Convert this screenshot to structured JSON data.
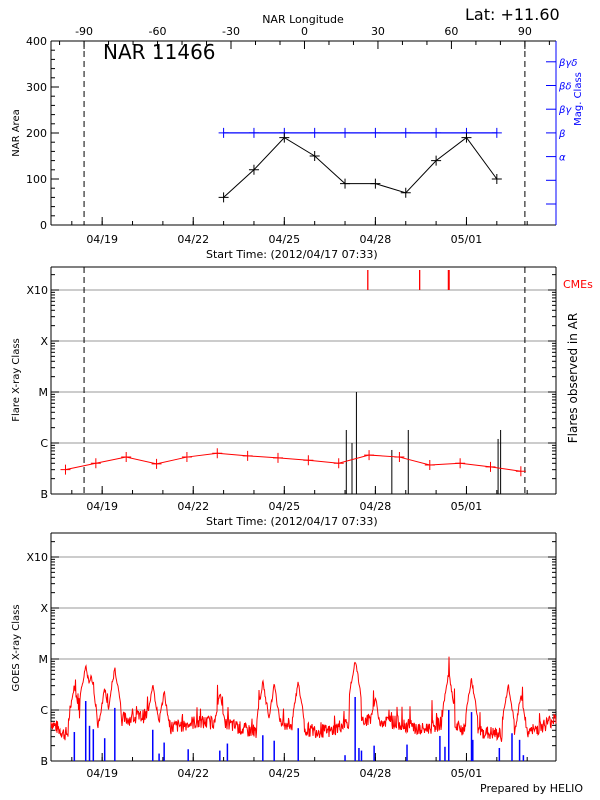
{
  "header": {
    "lat_label": "Lat: +11.60",
    "region_label": "NAR 11466",
    "footer": "Prepared by HELIO"
  },
  "colors": {
    "area": "#000000",
    "mag_class": "#0000ff",
    "goes": "#ff0000",
    "cme": "#ff0000",
    "flares": "#000000",
    "goes_short": "#0000ff",
    "grid": "#999999"
  },
  "chart_data": [
    {
      "panel": "nar",
      "type": "line",
      "xlabel": "Start Time: (2012/04/17 07:33)",
      "ylabel": "NAR Area",
      "xlim": [
        "04/17 07:33",
        "05/03 22:47"
      ],
      "xticks": [
        "04/19",
        "04/22",
        "04/25",
        "04/28",
        "05/01"
      ],
      "ylim": [
        0,
        400
      ],
      "yticks": [
        0,
        100,
        200,
        300,
        400
      ],
      "top_axis": {
        "label": "NAR Longitude",
        "xlim": [
          -103.5,
          102.7
        ],
        "ticks": [
          -90,
          -60,
          -30,
          0,
          30,
          60,
          90
        ]
      },
      "limb_longitudes": [
        -90,
        90
      ],
      "right_axis": {
        "label": "Mag. Class",
        "classes": [
          "",
          "",
          "α",
          "β",
          "βγ",
          "βδ",
          "βγδ"
        ]
      },
      "area": {
        "x": [
          "04/23 00:00",
          "04/24 00:00",
          "04/25 00:00",
          "04/26 00:00",
          "04/27 00:00",
          "04/28 00:00",
          "04/29 00:00",
          "04/30 00:00",
          "05/01 00:00",
          "05/02 00:00"
        ],
        "values": [
          60,
          120,
          190,
          150,
          90,
          90,
          70,
          140,
          190,
          100
        ]
      },
      "mag_class": {
        "x": [
          "04/23 00:00",
          "04/24 00:00",
          "04/25 00:00",
          "04/26 00:00",
          "04/27 00:00",
          "04/28 00:00",
          "04/29 00:00",
          "04/30 00:00",
          "05/01 00:00",
          "05/02 00:00"
        ],
        "values": [
          "β",
          "β",
          "β",
          "β",
          "β",
          "β",
          "β",
          "β",
          "β",
          "β"
        ]
      }
    },
    {
      "panel": "flares",
      "type": "line",
      "xlabel": "Start Time: (2012/04/17 07:33)",
      "ylabel": "Flare X-ray Class",
      "right_label": "Flares observed in AR",
      "cme_label": "CMEs",
      "xticks": [
        "04/19",
        "04/22",
        "04/25",
        "04/28",
        "05/01"
      ],
      "yticks": [
        "B",
        "C",
        "M",
        "X",
        "X10"
      ],
      "ylim": [
        "B1.0",
        "X10 +0.45 decade"
      ],
      "grid": true,
      "limb_longitudes": [
        -90,
        90
      ],
      "goes_daily": {
        "x": [
          "04/17 19:00",
          "04/18 19:00",
          "04/19 19:00",
          "04/20 19:00",
          "04/21 19:00",
          "04/22 19:00",
          "04/23 19:00",
          "04/24 19:00",
          "04/25 19:00",
          "04/26 19:00",
          "04/27 19:00",
          "04/28 19:00",
          "04/29 19:00",
          "04/30 19:00",
          "05/01 19:00",
          "05/02 19:00"
        ],
        "values": [
          "B3.0",
          "B4.0",
          "B5.3",
          "B3.9",
          "B5.3",
          "B6.3",
          "B5.6",
          "B5.1",
          "B4.6",
          "B4.0",
          "B5.8",
          "B5.3",
          "B3.7",
          "B4.0",
          "B3.4",
          "B2.8"
        ]
      },
      "flares": [
        {
          "x": "04/27 01:00",
          "class": "C1.8"
        },
        {
          "x": "04/27 05:30",
          "class": "C1.0"
        },
        {
          "x": "04/27 09:00",
          "class": "M1.0"
        },
        {
          "x": "04/28 13:00",
          "class": "B7.3"
        },
        {
          "x": "04/29 02:00",
          "class": "C1.8"
        },
        {
          "x": "05/02 01:00",
          "class": "C1.2"
        },
        {
          "x": "05/02 03:00",
          "class": "C1.8"
        }
      ],
      "cmes": [
        "04/27 18:00",
        "04/29 11:00",
        "04/30 10:00"
      ]
    },
    {
      "panel": "goes",
      "type": "line",
      "ylabel": "GOES X-ray Class",
      "xticks": [
        "04/19",
        "04/22",
        "04/25",
        "04/28",
        "05/01"
      ],
      "yticks": [
        "B",
        "C",
        "M",
        "X",
        "X10"
      ],
      "grid": true,
      "long_channel_baseline": [
        [
          "04/17 07:33",
          "B5.1"
        ],
        [
          "04/17 18:00",
          "B3.0"
        ],
        [
          "04/18 12:00",
          "B3.5"
        ],
        [
          "04/19 00:00",
          "B5.5"
        ],
        [
          "04/20 00:00",
          "B6.0"
        ],
        [
          "04/20 18:00",
          "B7.5"
        ],
        [
          "04/21 06:00",
          "B4.0"
        ],
        [
          "04/22 00:00",
          "B5.0"
        ],
        [
          "04/23 00:00",
          "B5.0"
        ],
        [
          "04/23 18:00",
          "B3.5"
        ],
        [
          "04/24 12:00",
          "B3.3"
        ],
        [
          "04/25 00:00",
          "B5.0"
        ],
        [
          "04/25 18:00",
          "B3.6"
        ],
        [
          "04/26 12:00",
          "B3.3"
        ],
        [
          "04/27 06:00",
          "B5.8"
        ],
        [
          "04/28 00:00",
          "B5.5"
        ],
        [
          "04/28 18:00",
          "B5.0"
        ],
        [
          "04/29 12:00",
          "B3.5"
        ],
        [
          "04/30 06:00",
          "B5.0"
        ],
        [
          "04/30 18:00",
          "B3.8"
        ],
        [
          "05/01 12:00",
          "B3.2"
        ],
        [
          "05/02 06:00",
          "B2.8"
        ],
        [
          "05/02 18:00",
          "B2.5"
        ],
        [
          "05/03 22:47",
          "B6.0"
        ]
      ],
      "long_channel_peaks": [
        [
          "04/18 02:00",
          "C3.4"
        ],
        [
          "04/18 11:00",
          "C9.0"
        ],
        [
          "04/18 15:00",
          "C5.6"
        ],
        [
          "04/19 02:00",
          "C3.0"
        ],
        [
          "04/19 10:00",
          "C7.3"
        ],
        [
          "04/20 16:00",
          "C3.4"
        ],
        [
          "04/21 01:00",
          "C2.5"
        ],
        [
          "04/22 21:00",
          "C2.5"
        ],
        [
          "04/24 07:00",
          "C4.0"
        ],
        [
          "04/24 16:00",
          "C3.4"
        ],
        [
          "04/25 11:00",
          "C3.9"
        ],
        [
          "04/27 08:00",
          "M1.1"
        ],
        [
          "04/28 00:00",
          "C2.0"
        ],
        [
          "04/30 10:00",
          "C6.0"
        ],
        [
          "05/01 04:00",
          "C4.5"
        ],
        [
          "05/02 09:00",
          "C3.5"
        ],
        [
          "05/02 19:00",
          "C2.2"
        ]
      ],
      "short_channel_spikes": [
        [
          "04/18 02:00",
          "B3.7"
        ],
        [
          "04/18 11:00",
          "C1.5"
        ],
        [
          "04/18 14:00",
          "B4.9"
        ],
        [
          "04/18 17:00",
          "B4.2"
        ],
        [
          "04/19 02:00",
          "B2.8"
        ],
        [
          "04/19 10:00",
          "C1.1"
        ],
        [
          "04/20 16:00",
          "B4.1"
        ],
        [
          "04/20 21:00",
          "B1.4"
        ],
        [
          "04/21 01:00",
          "B2.3"
        ],
        [
          "04/21 20:00",
          "B1.7"
        ],
        [
          "04/22 21:00",
          "B1.6"
        ],
        [
          "04/23 03:00",
          "B2.2"
        ],
        [
          "04/24 07:00",
          "B3.2"
        ],
        [
          "04/24 16:00",
          "B2.5"
        ],
        [
          "04/25 11:00",
          "B4.4"
        ],
        [
          "04/27 00:00",
          "B1.3"
        ],
        [
          "04/27 08:00",
          "C1.8"
        ],
        [
          "04/27 11:00",
          "B1.8"
        ],
        [
          "04/27 13:00",
          "B1.6"
        ],
        [
          "04/27 23:00",
          "B2.0"
        ],
        [
          "04/29 01:00",
          "B2.1"
        ],
        [
          "04/30 03:00",
          "B3.1"
        ],
        [
          "04/30 07:00",
          "B1.9"
        ],
        [
          "04/30 10:00",
          "C1.0"
        ],
        [
          "05/01 04:00",
          "B9.1"
        ],
        [
          "05/01 05:00",
          "B2.6"
        ],
        [
          "05/02 02:00",
          "B1.8"
        ],
        [
          "05/02 12:00",
          "B3.5"
        ],
        [
          "05/02 18:00",
          "B2.6"
        ],
        [
          "05/02 21:00",
          "B1.3"
        ]
      ]
    }
  ]
}
